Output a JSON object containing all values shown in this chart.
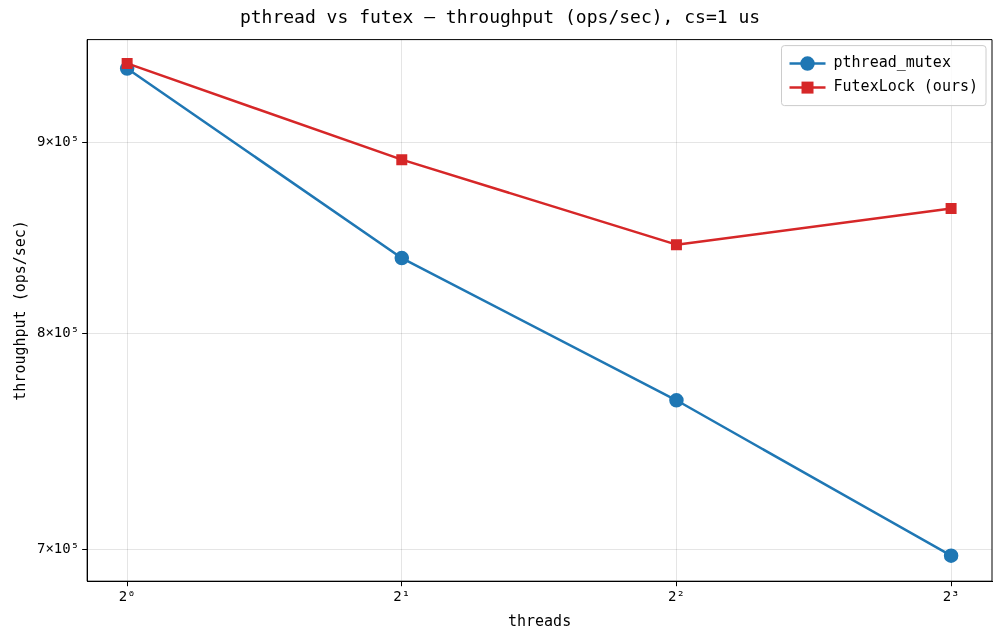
{
  "chart_data": {
    "type": "line",
    "title": "pthread vs futex — throughput (ops/sec), cs=1 us",
    "xlabel": "threads",
    "ylabel": "throughput (ops/sec)",
    "x": [
      1,
      2,
      4,
      8
    ],
    "series": [
      {
        "name": "pthread_mutex",
        "color": "#1f77b4",
        "marker": "circle",
        "values": [
          942000,
          838000,
          767600,
          697400
        ]
      },
      {
        "name": "FutexLock (ours)",
        "color": "#d62728",
        "marker": "square",
        "values": [
          945000,
          890500,
          845000,
          864000
        ]
      }
    ],
    "log": "xy",
    "xlim": [
      0.904,
      8.87
    ],
    "ylim": [
      686500,
      959000
    ],
    "xticks": [
      {
        "value": 1,
        "label": "2⁰"
      },
      {
        "value": 2,
        "label": "2¹"
      },
      {
        "value": 4,
        "label": "2²"
      },
      {
        "value": 8,
        "label": "2³"
      }
    ],
    "yticks": [
      {
        "value": 700000,
        "label": "7×10⁵"
      },
      {
        "value": 800000,
        "label": "8×10⁵"
      },
      {
        "value": 900000,
        "label": "9×10⁵"
      }
    ],
    "grid": true,
    "legend": "top right",
    "line_style": "solid"
  }
}
